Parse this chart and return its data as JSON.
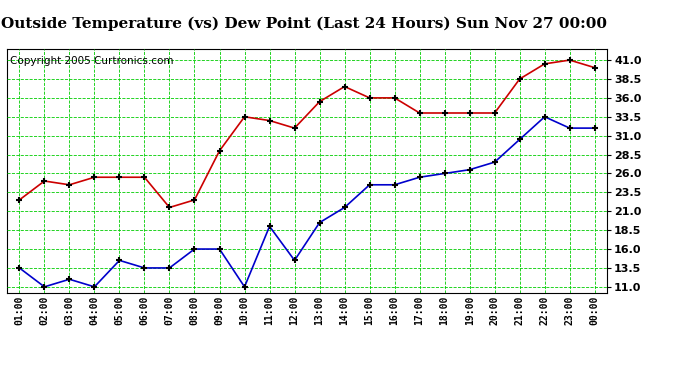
{
  "title": "Outside Temperature (vs) Dew Point (Last 24 Hours) Sun Nov 27 00:00",
  "copyright": "Copyright 2005 Curtronics.com",
  "x_labels": [
    "01:00",
    "02:00",
    "03:00",
    "04:00",
    "05:00",
    "06:00",
    "07:00",
    "08:00",
    "09:00",
    "10:00",
    "11:00",
    "12:00",
    "13:00",
    "14:00",
    "15:00",
    "16:00",
    "17:00",
    "18:00",
    "19:00",
    "20:00",
    "21:00",
    "22:00",
    "23:00",
    "00:00"
  ],
  "y_ticks": [
    11.0,
    13.5,
    16.0,
    18.5,
    21.0,
    23.5,
    26.0,
    28.5,
    31.0,
    33.5,
    36.0,
    38.5,
    41.0
  ],
  "ylim": [
    10.25,
    42.5
  ],
  "red_data": [
    22.5,
    25.0,
    24.5,
    25.5,
    25.5,
    25.5,
    21.5,
    22.5,
    29.0,
    33.5,
    33.0,
    32.0,
    35.5,
    37.5,
    36.0,
    36.0,
    34.0,
    34.0,
    34.0,
    34.0,
    38.5,
    40.5,
    41.0,
    40.0
  ],
  "blue_data": [
    13.5,
    11.0,
    12.0,
    11.0,
    14.5,
    13.5,
    13.5,
    16.0,
    16.0,
    11.0,
    19.0,
    14.5,
    19.5,
    21.5,
    24.5,
    24.5,
    25.5,
    26.0,
    26.5,
    27.5,
    30.5,
    33.5,
    32.0,
    32.0
  ],
  "red_color": "#cc0000",
  "blue_color": "#0000cc",
  "bg_color": "#ffffff",
  "grid_color": "#00cc00",
  "title_fontsize": 11,
  "copyright_fontsize": 7.5
}
